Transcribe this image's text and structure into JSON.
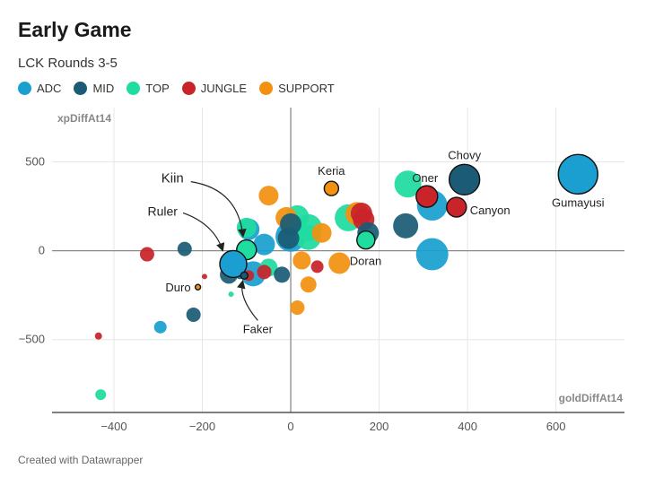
{
  "title": "Early Game",
  "subtitle": "LCK Rounds 3-5",
  "footer": "Created with Datawrapper",
  "chart_data": {
    "type": "scatter",
    "title": "Early Game",
    "subtitle": "LCK Rounds 3-5",
    "xlabel": "goldDiffAt14",
    "ylabel": "xpDiffAt14",
    "xlim": [
      -540,
      755
    ],
    "ylim": [
      -910,
      805
    ],
    "xticks": [
      -400,
      -200,
      0,
      200,
      400,
      600
    ],
    "xtick_labels": [
      "−400",
      "−200",
      "0",
      "200",
      "400",
      "600"
    ],
    "yticks": [
      -500,
      0,
      500
    ],
    "ytick_labels": [
      "−500",
      "0",
      "500"
    ],
    "grid": true,
    "legend_position": "top-left",
    "categories": [
      {
        "name": "ADC",
        "color": "#1a9fd0"
      },
      {
        "name": "MID",
        "color": "#1b5b75"
      },
      {
        "name": "TOP",
        "color": "#1fdca0"
      },
      {
        "name": "JUNGLE",
        "color": "#c8242a"
      },
      {
        "name": "SUPPORT",
        "color": "#f29110"
      }
    ],
    "points": [
      {
        "cat": "SUPPORT",
        "x": 150,
        "y": 208,
        "size": 13
      },
      {
        "cat": "SUPPORT",
        "x": -50,
        "y": 310,
        "size": 11
      },
      {
        "cat": "SUPPORT",
        "x": -10,
        "y": 185,
        "size": 12
      },
      {
        "cat": "SUPPORT",
        "x": 70,
        "y": 100,
        "size": 11
      },
      {
        "cat": "SUPPORT",
        "x": 25,
        "y": -55,
        "size": 10
      },
      {
        "cat": "SUPPORT",
        "x": 40,
        "y": -190,
        "size": 9
      },
      {
        "cat": "SUPPORT",
        "x": 15,
        "y": -320,
        "size": 8
      },
      {
        "cat": "SUPPORT",
        "x": 110,
        "y": -70,
        "size": 12
      },
      {
        "cat": "JUNGLE",
        "x": 160,
        "y": 210,
        "size": 12
      },
      {
        "cat": "JUNGLE",
        "x": 165,
        "y": 175,
        "size": 12
      },
      {
        "cat": "JUNGLE",
        "x": -325,
        "y": -20,
        "size": 8
      },
      {
        "cat": "JUNGLE",
        "x": -60,
        "y": -120,
        "size": 8
      },
      {
        "cat": "JUNGLE",
        "x": 60,
        "y": -90,
        "size": 7
      },
      {
        "cat": "JUNGLE",
        "x": -95,
        "y": -140,
        "size": 6
      },
      {
        "cat": "JUNGLE",
        "x": -195,
        "y": -145,
        "size": 3
      },
      {
        "cat": "JUNGLE",
        "x": -435,
        "y": -480,
        "size": 4
      },
      {
        "cat": "TOP",
        "x": 265,
        "y": 375,
        "size": 15
      },
      {
        "cat": "TOP",
        "x": 15,
        "y": 190,
        "size": 13
      },
      {
        "cat": "TOP",
        "x": 40,
        "y": 130,
        "size": 15
      },
      {
        "cat": "TOP",
        "x": 40,
        "y": 75,
        "size": 14
      },
      {
        "cat": "TOP",
        "x": 130,
        "y": 185,
        "size": 15
      },
      {
        "cat": "TOP",
        "x": -100,
        "y": 130,
        "size": 11
      },
      {
        "cat": "TOP",
        "x": -50,
        "y": -95,
        "size": 10
      },
      {
        "cat": "TOP",
        "x": -135,
        "y": -245,
        "size": 3
      },
      {
        "cat": "TOP",
        "x": -430,
        "y": -810,
        "size": 6
      },
      {
        "cat": "ADC",
        "x": 320,
        "y": 255,
        "size": 17
      },
      {
        "cat": "ADC",
        "x": 320,
        "y": -20,
        "size": 18
      },
      {
        "cat": "ADC",
        "x": -95,
        "y": 120,
        "size": 12
      },
      {
        "cat": "ADC",
        "x": -60,
        "y": 35,
        "size": 12
      },
      {
        "cat": "ADC",
        "x": 0,
        "y": 80,
        "size": 17
      },
      {
        "cat": "ADC",
        "x": -85,
        "y": -130,
        "size": 14
      },
      {
        "cat": "ADC",
        "x": -295,
        "y": -430,
        "size": 7
      },
      {
        "cat": "MID",
        "x": 260,
        "y": 140,
        "size": 14
      },
      {
        "cat": "MID",
        "x": 175,
        "y": 100,
        "size": 12
      },
      {
        "cat": "MID",
        "x": 0,
        "y": 150,
        "size": 12
      },
      {
        "cat": "MID",
        "x": -5,
        "y": 70,
        "size": 12
      },
      {
        "cat": "MID",
        "x": -240,
        "y": 10,
        "size": 8
      },
      {
        "cat": "MID",
        "x": -220,
        "y": -360,
        "size": 8
      },
      {
        "cat": "MID",
        "x": -20,
        "y": -135,
        "size": 9
      },
      {
        "cat": "MID",
        "x": -140,
        "y": -135,
        "size": 10
      },
      {
        "cat": "MID",
        "x": -115,
        "y": -135,
        "size": 5
      }
    ],
    "highlighted": [
      {
        "name": "Gumayusi",
        "cat": "ADC",
        "x": 650,
        "y": 430,
        "size": 22
      },
      {
        "name": "Chovy",
        "cat": "MID",
        "x": 393,
        "y": 400,
        "size": 17
      },
      {
        "name": "Oner",
        "cat": "JUNGLE",
        "x": 308,
        "y": 305,
        "size": 12
      },
      {
        "name": "Canyon",
        "cat": "JUNGLE",
        "x": 375,
        "y": 245,
        "size": 11
      },
      {
        "name": "Keria",
        "cat": "SUPPORT",
        "x": 92,
        "y": 350,
        "size": 8
      },
      {
        "name": "Doran",
        "cat": "TOP",
        "x": 170,
        "y": 60,
        "size": 10
      },
      {
        "name": "Kiin",
        "cat": "TOP",
        "x": -100,
        "y": 5,
        "size": 11
      },
      {
        "name": "Ruler",
        "cat": "ADC",
        "x": -130,
        "y": -75,
        "size": 15
      },
      {
        "name": "Faker",
        "cat": "MID",
        "x": -105,
        "y": -140,
        "size": 4
      },
      {
        "name": "Duro",
        "cat": "SUPPORT",
        "x": -210,
        "y": -205,
        "size": 3
      }
    ]
  }
}
